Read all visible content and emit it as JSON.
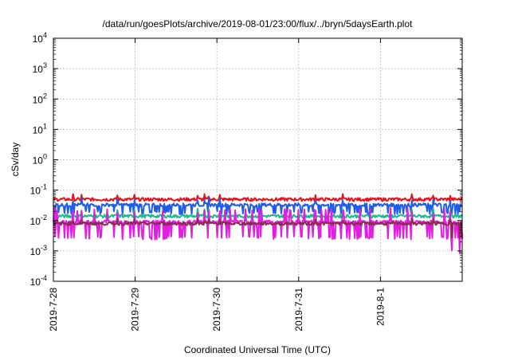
{
  "chart_data": {
    "type": "line",
    "title": "/data/run/goesPlots/archive/2019-08-01/23:00/flux/../bryn/5daysEarth.plot",
    "xlabel": "Coordinated Universal Time (UTC)",
    "ylabel": "cSv/day",
    "yscale": "log",
    "ylim": [
      0.0001,
      10000
    ],
    "xlim": [
      "2019-07-28",
      "2019-08-02"
    ],
    "grid": true,
    "x_ticks": [
      "2019-7-28",
      "2019-7-29",
      "2019-7-30",
      "2019-7-31",
      "2019-8-1"
    ],
    "y_ticks": [
      {
        "base": "10",
        "exp": "-4"
      },
      {
        "base": "10",
        "exp": "-3"
      },
      {
        "base": "10",
        "exp": "-2"
      },
      {
        "base": "10",
        "exp": "-1"
      },
      {
        "base": "10",
        "exp": "0"
      },
      {
        "base": "10",
        "exp": "1"
      },
      {
        "base": "10",
        "exp": "2"
      },
      {
        "base": "10",
        "exp": "3"
      },
      {
        "base": "10",
        "exp": "4"
      }
    ],
    "series": [
      {
        "color": "#e8131a",
        "baseline": 0.05,
        "dip": 0.0,
        "spike": 1.35
      },
      {
        "color": "#1f5de8",
        "baseline": 0.033,
        "dip": 0.55,
        "spike": 1.5
      },
      {
        "color": "#1eb98f",
        "baseline": 0.014,
        "dip": 0.0,
        "spike": 1.6
      },
      {
        "color": "#e21ee0",
        "baseline": 0.009,
        "dip": 0.3,
        "spike": 2.2
      },
      {
        "color": "#8a2b52",
        "baseline": 0.008,
        "dip": 0.0,
        "spike": 1.3
      }
    ]
  }
}
